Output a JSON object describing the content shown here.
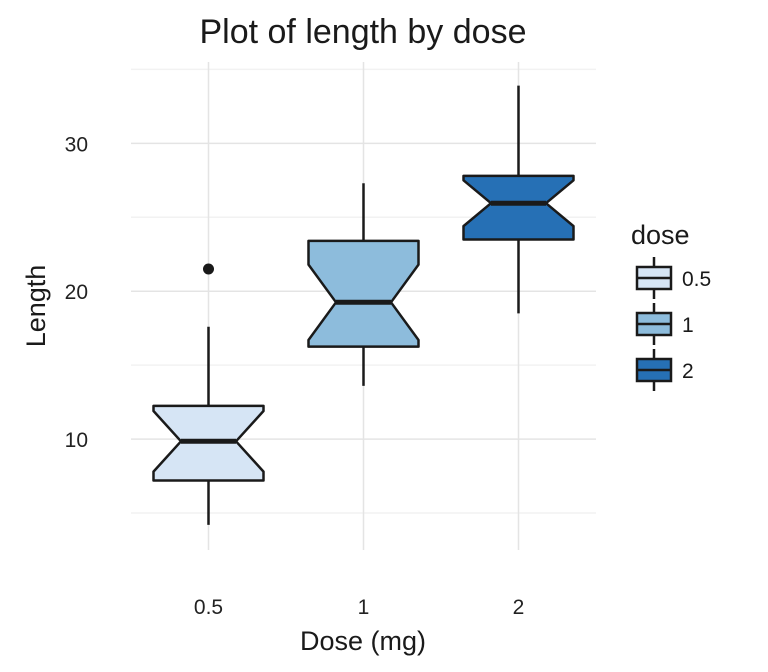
{
  "chart_data": {
    "type": "boxplot",
    "notched": true,
    "title": "Plot of length  by dose",
    "xlabel": "Dose (mg)",
    "ylabel": "Length",
    "categories": [
      "0.5",
      "1",
      "2"
    ],
    "ylim": [
      2.5,
      35.5
    ],
    "yticks": [
      10,
      20,
      30
    ],
    "grid": true,
    "legend": {
      "title": "dose",
      "position": "right",
      "entries": [
        "0.5",
        "1",
        "2"
      ]
    },
    "series": [
      {
        "category": "0.5",
        "min": 4.2,
        "q1": 7.2,
        "median": 9.85,
        "q3": 12.25,
        "max": 17.6,
        "notch_low": 7.8,
        "notch_high": 11.9,
        "outliers": [
          21.5
        ],
        "color": "#d6e5f5"
      },
      {
        "category": "1",
        "min": 13.6,
        "q1": 16.25,
        "median": 19.25,
        "q3": 23.4,
        "max": 27.3,
        "notch_low": 16.7,
        "notch_high": 21.8,
        "outliers": [],
        "color": "#8dbcdc"
      },
      {
        "category": "2",
        "min": 18.5,
        "q1": 23.5,
        "median": 25.95,
        "q3": 27.8,
        "max": 33.9,
        "notch_low": 24.4,
        "notch_high": 27.5,
        "outliers": [],
        "color": "#2670b5"
      }
    ]
  }
}
